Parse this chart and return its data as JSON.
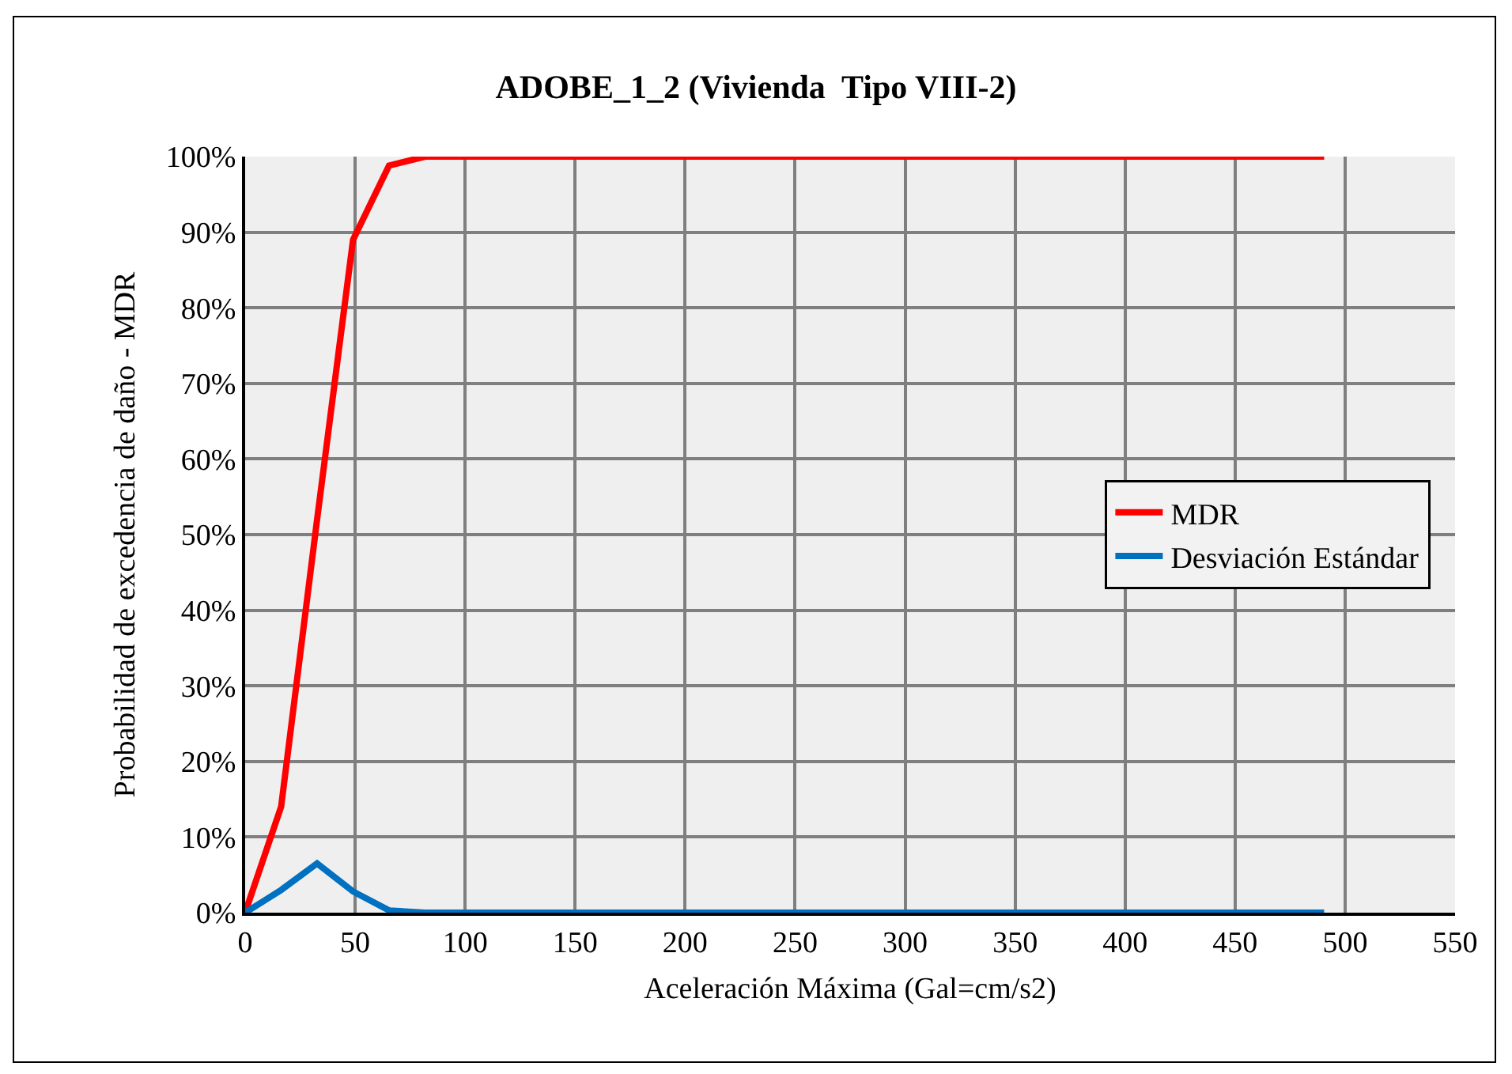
{
  "chart_data": {
    "type": "line",
    "title": "ADOBE_1_2 (Vivienda  Tipo VIII-2)",
    "xlabel": "Aceleración Máxima (Gal=cm/s2)",
    "ylabel": "Probabilidad de excedencia de daño - MDR",
    "x": [
      0,
      16.35,
      32.7,
      49.05,
      65.4,
      81.75,
      490.5
    ],
    "series": [
      {
        "name": "MDR",
        "color": "#ff0000",
        "values": [
          0,
          14,
          52,
          89,
          98.8,
          100,
          100
        ]
      },
      {
        "name": "Desviación Estándar",
        "color": "#0070c0",
        "values": [
          0,
          3,
          6.5,
          2.8,
          0.3,
          0,
          0
        ]
      }
    ],
    "xlim": [
      0,
      550
    ],
    "xticks": [
      0,
      50,
      100,
      150,
      200,
      250,
      300,
      350,
      400,
      450,
      500,
      550
    ],
    "ylim": [
      0,
      100
    ],
    "yticks": [
      {
        "value": 0,
        "label": "0%"
      },
      {
        "value": 10,
        "label": "10%"
      },
      {
        "value": 20,
        "label": "20%"
      },
      {
        "value": 30,
        "label": "30%"
      },
      {
        "value": 40,
        "label": "40%"
      },
      {
        "value": 50,
        "label": "50%"
      },
      {
        "value": 60,
        "label": "60%"
      },
      {
        "value": 70,
        "label": "70%"
      },
      {
        "value": 80,
        "label": "80%"
      },
      {
        "value": 90,
        "label": "90%"
      },
      {
        "value": 100,
        "label": "100%"
      }
    ],
    "grid": true,
    "legend": "right",
    "marker": "none",
    "line_style": "solid"
  }
}
